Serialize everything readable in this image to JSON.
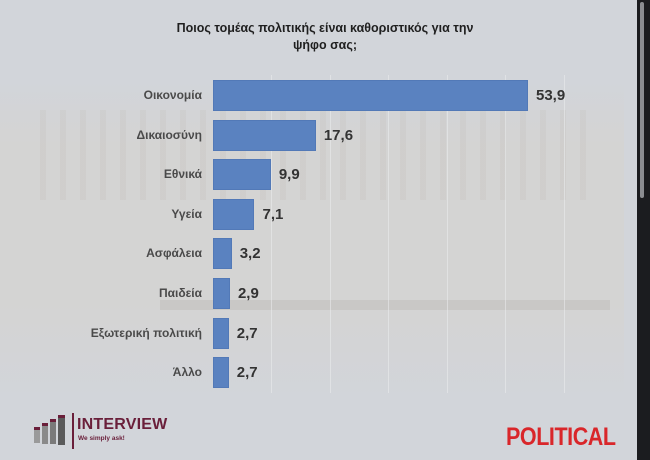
{
  "chart_data": {
    "type": "bar",
    "orientation": "horizontal",
    "title": "Ποιος τομέας πολιτικής είναι καθοριστικός για την ψήφο σας;",
    "categories": [
      "Οικονομία",
      "Δικαιοσύνη",
      "Εθνικά",
      "Υγεία",
      "Ασφάλεια",
      "Παιδεία",
      "Εξωτερική πολιτική",
      "Άλλο"
    ],
    "values": [
      53.9,
      17.6,
      9.9,
      7.1,
      3.2,
      2.9,
      2.7,
      2.7
    ],
    "value_labels": [
      "53,9",
      "17,6",
      "9,9",
      "7,1",
      "3,2",
      "2,9",
      "2,7",
      "2,7"
    ],
    "xlabel": "",
    "ylabel": "",
    "xlim": [
      0,
      60
    ],
    "grid": true,
    "legend": "none",
    "bar_color": "#5a82c0"
  },
  "header": {
    "title_line1": "Ποιος τομέας πολιτικής είναι καθοριστικός για την",
    "title_line2": "ψήφο σας;"
  },
  "logos": {
    "interview_name": "INTERVIEW",
    "interview_tagline": "We simply ask!",
    "interview_color": "#6a1f3a",
    "political_name": "POLITICAL",
    "political_color": "#d9262a"
  },
  "colors": {
    "panel_bg": "#d2d5da",
    "frame_bg": "#1c1d20",
    "label_text": "#4a4a4a",
    "value_text": "#333333"
  }
}
